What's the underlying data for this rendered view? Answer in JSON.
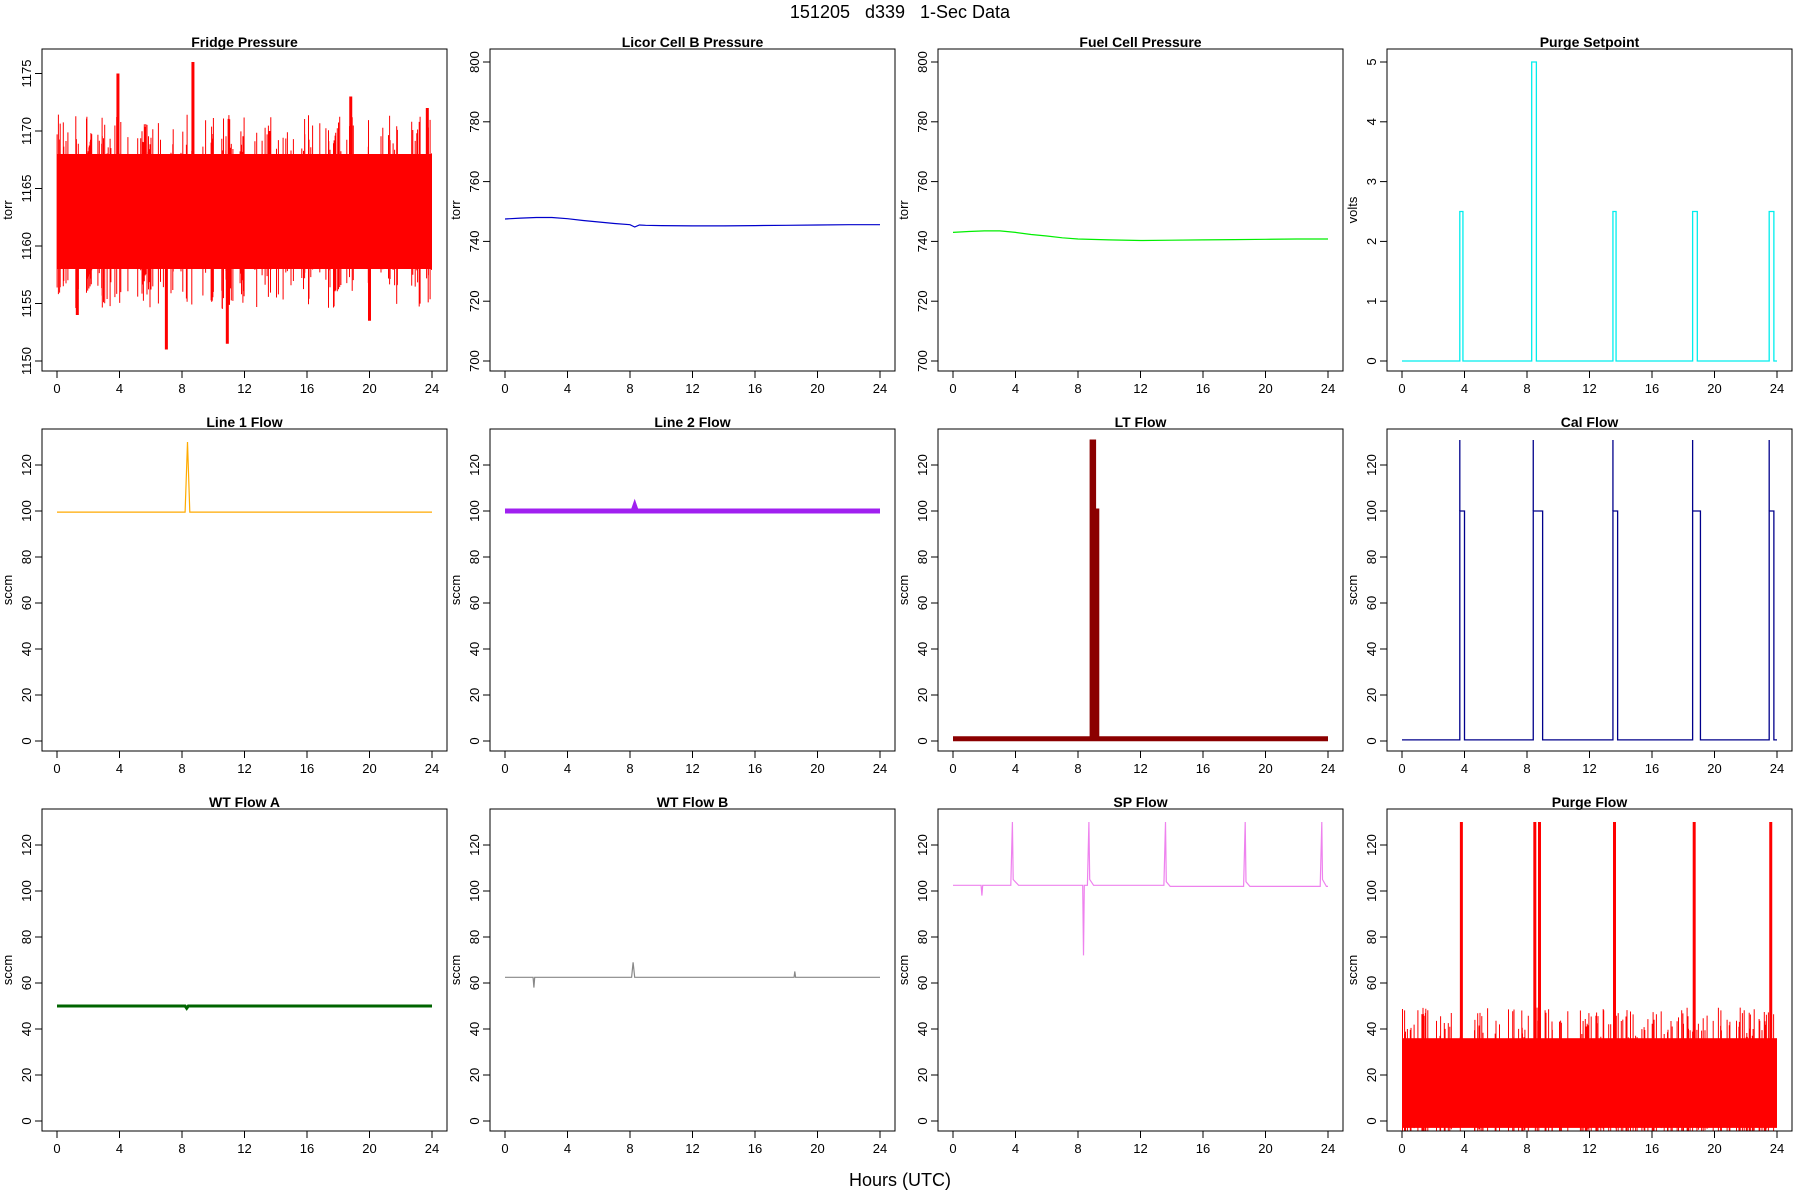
{
  "page": {
    "title": "151205   d339   1-Sec Data",
    "xlabel": "Hours (UTC)"
  },
  "chart_data": [
    {
      "type": "line",
      "title": "Fridge Pressure",
      "ylabel": "torr",
      "color": "#ff0000",
      "xlim": [
        0,
        24
      ],
      "ylim": [
        1150,
        1176
      ],
      "xticks": [
        0,
        4,
        8,
        12,
        16,
        20,
        24
      ],
      "yticks": [
        1150,
        1155,
        1160,
        1165,
        1170,
        1175
      ],
      "series": [
        {
          "band_low": 1158,
          "band_high": 1168,
          "spikes": [
            [
              3.9,
              1175
            ],
            [
              8.7,
              1176
            ],
            [
              13.6,
              1170
            ],
            [
              18.8,
              1173
            ],
            [
              23.7,
              1172
            ],
            [
              7.0,
              1151
            ],
            [
              10.9,
              1151.5
            ],
            [
              1.3,
              1154
            ],
            [
              20.0,
              1153.5
            ]
          ]
        }
      ]
    },
    {
      "type": "line",
      "title": "Licor Cell B Pressure",
      "ylabel": "torr",
      "color": "#0000cc",
      "xlim": [
        0,
        24
      ],
      "ylim": [
        700,
        800
      ],
      "xticks": [
        0,
        4,
        8,
        12,
        16,
        20,
        24
      ],
      "yticks": [
        700,
        720,
        740,
        760,
        780,
        800
      ],
      "series": [
        {
          "x": [
            0,
            1,
            2,
            3,
            4,
            5,
            6,
            7,
            8,
            8.3,
            8.6,
            9,
            10,
            12,
            14,
            16,
            18,
            20,
            22,
            24
          ],
          "y": [
            747.5,
            747.8,
            748,
            748,
            747.6,
            747,
            746.5,
            746,
            745.6,
            744.8,
            745.5,
            745.4,
            745.3,
            745.2,
            745.2,
            745.3,
            745.4,
            745.5,
            745.6,
            745.6
          ]
        }
      ]
    },
    {
      "type": "line",
      "title": "Fuel Cell Pressure",
      "ylabel": "torr",
      "color": "#00ee00",
      "xlim": [
        0,
        24
      ],
      "ylim": [
        700,
        800
      ],
      "xticks": [
        0,
        4,
        8,
        12,
        16,
        20,
        24
      ],
      "yticks": [
        700,
        720,
        740,
        760,
        780,
        800
      ],
      "series": [
        {
          "x": [
            0,
            1,
            2,
            3,
            4,
            5,
            6,
            7,
            8,
            10,
            12,
            14,
            16,
            18,
            20,
            22,
            24
          ],
          "y": [
            743,
            743.3,
            743.5,
            743.5,
            743.0,
            742.3,
            741.8,
            741.2,
            740.8,
            740.5,
            740.3,
            740.4,
            740.5,
            740.6,
            740.7,
            740.8,
            740.8
          ]
        }
      ]
    },
    {
      "type": "line",
      "title": "Purge Setpoint",
      "ylabel": "volts",
      "color": "#00eeee",
      "xlim": [
        0,
        24
      ],
      "ylim": [
        0,
        5
      ],
      "xticks": [
        0,
        4,
        8,
        12,
        16,
        20,
        24
      ],
      "yticks": [
        0,
        1,
        2,
        3,
        4,
        5
      ],
      "series": [
        {
          "baseline": 0,
          "pulses": [
            [
              3.7,
              3.9,
              2.5
            ],
            [
              8.3,
              8.6,
              5.0
            ],
            [
              13.5,
              13.7,
              2.5
            ],
            [
              18.6,
              18.9,
              2.5
            ],
            [
              23.5,
              23.8,
              2.5
            ]
          ]
        }
      ]
    },
    {
      "type": "line",
      "title": "Line 1 Flow",
      "ylabel": "sccm",
      "color": "#ffaa00",
      "xlim": [
        0,
        24
      ],
      "ylim": [
        0,
        130
      ],
      "xticks": [
        0,
        4,
        8,
        12,
        16,
        20,
        24
      ],
      "yticks": [
        0,
        20,
        40,
        60,
        80,
        100,
        120
      ],
      "series": [
        {
          "x": [
            0,
            8.2,
            8.35,
            8.5,
            24
          ],
          "y": [
            99.5,
            99.5,
            130,
            99.5,
            99.5
          ]
        }
      ]
    },
    {
      "type": "line",
      "title": "Line 2 Flow",
      "ylabel": "sccm",
      "color": "#a020f0",
      "xlim": [
        0,
        24
      ],
      "ylim": [
        0,
        130
      ],
      "xticks": [
        0,
        4,
        8,
        12,
        16,
        20,
        24
      ],
      "yticks": [
        0,
        20,
        40,
        60,
        80,
        100,
        120
      ],
      "series": [
        {
          "x": [
            0,
            8.2,
            8.3,
            8.4,
            24
          ],
          "y": [
            100,
            100,
            102,
            100,
            100
          ]
        }
      ]
    },
    {
      "type": "line",
      "title": "LT Flow",
      "ylabel": "sccm",
      "color": "#8b0000",
      "xlim": [
        0,
        24
      ],
      "ylim": [
        0,
        130
      ],
      "xticks": [
        0,
        4,
        8,
        12,
        16,
        20,
        24
      ],
      "yticks": [
        0,
        20,
        40,
        60,
        80,
        100,
        120
      ],
      "series": [
        {
          "x": [
            0,
            8.9,
            8.9,
            9.0,
            9.0,
            9.2,
            9.2,
            24
          ],
          "y": [
            1,
            1,
            130,
            130,
            100,
            100,
            1,
            1
          ]
        }
      ]
    },
    {
      "type": "line",
      "title": "Cal Flow",
      "ylabel": "sccm",
      "color": "#00008b",
      "xlim": [
        0,
        24
      ],
      "ylim": [
        0,
        130
      ],
      "xticks": [
        0,
        4,
        8,
        12,
        16,
        20,
        24
      ],
      "yticks": [
        0,
        20,
        40,
        60,
        80,
        100,
        120
      ],
      "series": [
        {
          "baseline": 0.5,
          "pulses": [
            [
              3.7,
              4.0,
              100
            ],
            [
              8.4,
              9.0,
              100
            ],
            [
              13.5,
              13.8,
              100
            ],
            [
              18.6,
              19.1,
              100
            ],
            [
              23.5,
              23.8,
              100
            ]
          ]
        }
      ]
    },
    {
      "type": "line",
      "title": "WT Flow A",
      "ylabel": "sccm",
      "color": "#006400",
      "xlim": [
        0,
        24
      ],
      "ylim": [
        0,
        130
      ],
      "xticks": [
        0,
        4,
        8,
        12,
        16,
        20,
        24
      ],
      "yticks": [
        0,
        20,
        40,
        60,
        80,
        100,
        120
      ],
      "series": [
        {
          "x": [
            0,
            8.2,
            8.3,
            8.4,
            24
          ],
          "y": [
            50,
            50,
            49,
            50,
            50
          ]
        }
      ]
    },
    {
      "type": "line",
      "title": "WT Flow B",
      "ylabel": "sccm",
      "color": "#888888",
      "xlim": [
        0,
        24
      ],
      "ylim": [
        0,
        130
      ],
      "xticks": [
        0,
        4,
        8,
        12,
        16,
        20,
        24
      ],
      "yticks": [
        0,
        20,
        40,
        60,
        80,
        100,
        120
      ],
      "series": [
        {
          "x": [
            0,
            1.8,
            1.85,
            1.9,
            8.1,
            8.2,
            8.3,
            18.5,
            18.55,
            18.6,
            24
          ],
          "y": [
            62.5,
            62.5,
            58,
            62.5,
            62.5,
            69,
            62.5,
            62.5,
            65,
            62.5,
            62.5
          ]
        }
      ]
    },
    {
      "type": "line",
      "title": "SP Flow",
      "ylabel": "sccm",
      "color": "#ee82ee",
      "xlim": [
        0,
        24
      ],
      "ylim": [
        0,
        130
      ],
      "xticks": [
        0,
        4,
        8,
        12,
        16,
        20,
        24
      ],
      "yticks": [
        0,
        20,
        40,
        60,
        80,
        100,
        120
      ],
      "series": [
        {
          "x": [
            0,
            1.8,
            1.85,
            1.9,
            3.7,
            3.8,
            3.85,
            4.2,
            8.3,
            8.35,
            8.4,
            8.6,
            8.7,
            8.75,
            9.0,
            13.5,
            13.6,
            13.65,
            13.9,
            18.6,
            18.7,
            18.75,
            19.0,
            23.5,
            23.6,
            23.65,
            23.9,
            24
          ],
          "y": [
            102.5,
            102.5,
            98,
            102.5,
            102.5,
            130,
            105,
            102.5,
            102.5,
            72,
            102.5,
            102.5,
            130,
            105,
            102.5,
            102.5,
            130,
            104,
            102,
            102,
            130,
            104,
            102,
            102,
            130,
            105,
            102,
            102
          ]
        }
      ]
    },
    {
      "type": "line",
      "title": "Purge Flow",
      "ylabel": "sccm",
      "color": "#ff0000",
      "xlim": [
        0,
        24
      ],
      "ylim": [
        0,
        130
      ],
      "xticks": [
        0,
        4,
        8,
        12,
        16,
        20,
        24
      ],
      "yticks": [
        0,
        20,
        40,
        60,
        80,
        100,
        120
      ],
      "series": [
        {
          "band_low": -3,
          "band_high": 36,
          "spikes": [
            [
              3.8,
              130
            ],
            [
              8.5,
              130
            ],
            [
              8.8,
              130
            ],
            [
              13.6,
              130
            ],
            [
              18.7,
              130
            ],
            [
              23.6,
              130
            ]
          ]
        }
      ]
    }
  ]
}
